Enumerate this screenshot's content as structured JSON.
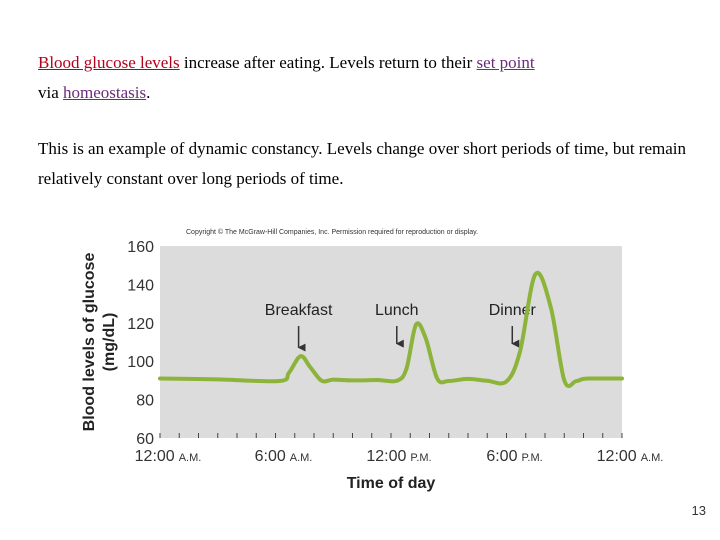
{
  "slide": {
    "p1": {
      "t1": "Blood glucose levels",
      "t2": " increase after eating.  Levels return to their ",
      "t3": "set point",
      "t4": "via ",
      "t5": "homeostasis",
      "t6": "."
    },
    "p2": "This is an example of dynamic constancy.  Levels change over short periods of time, but remain relatively constant over long periods of time.",
    "slide_number": "13"
  },
  "colors": {
    "highlight_red": "#b3001b",
    "highlight_purple": "#6b2c7a",
    "plot_bg": "#dcdcdc",
    "line": "#8cb33a"
  },
  "chart_data": {
    "type": "line",
    "copyright": "Copyright © The McGraw-Hill Companies, Inc. Permission required for reproduction or display.",
    "ylabel_line1": "Blood levels of glucose",
    "ylabel_line2": "(mg/dL)",
    "xlabel": "Time of day",
    "ylim": [
      60,
      160
    ],
    "yticks": [
      60,
      80,
      100,
      120,
      140,
      160
    ],
    "xlim": [
      0,
      24
    ],
    "xticks": [
      {
        "x": 0,
        "num": "12:00",
        "unit": "A.M."
      },
      {
        "x": 6,
        "num": "6:00",
        "unit": "A.M."
      },
      {
        "x": 12,
        "num": "12:00",
        "unit": "P.M."
      },
      {
        "x": 18,
        "num": "6:00",
        "unit": "P.M."
      },
      {
        "x": 24,
        "num": "12:00",
        "unit": "A.M."
      }
    ],
    "grid": false,
    "annotations": [
      {
        "label": "Breakfast",
        "x": 7.2,
        "y_arrow": 104
      },
      {
        "label": "Lunch",
        "x": 12.3,
        "y_arrow": 106
      },
      {
        "label": "Dinner",
        "x": 18.3,
        "y_arrow": 106
      }
    ],
    "series": [
      {
        "x": [
          0,
          3,
          6.2,
          6.7,
          7.3,
          7.8,
          8.4,
          9,
          10,
          11.3,
          12.3,
          12.8,
          13.3,
          13.8,
          14.4,
          15,
          16,
          17,
          18,
          18.7,
          19.5,
          20.3,
          21,
          21.6,
          22,
          22.5,
          24
        ],
        "y": [
          91,
          90.5,
          89.7,
          94,
          102.6,
          97,
          89.8,
          90.4,
          90,
          90.2,
          89.8,
          96,
          119,
          112,
          91,
          89.7,
          90.8,
          89.8,
          89.5,
          105,
          145.3,
          128,
          90,
          89.6,
          90.8,
          91,
          91
        ]
      }
    ]
  }
}
